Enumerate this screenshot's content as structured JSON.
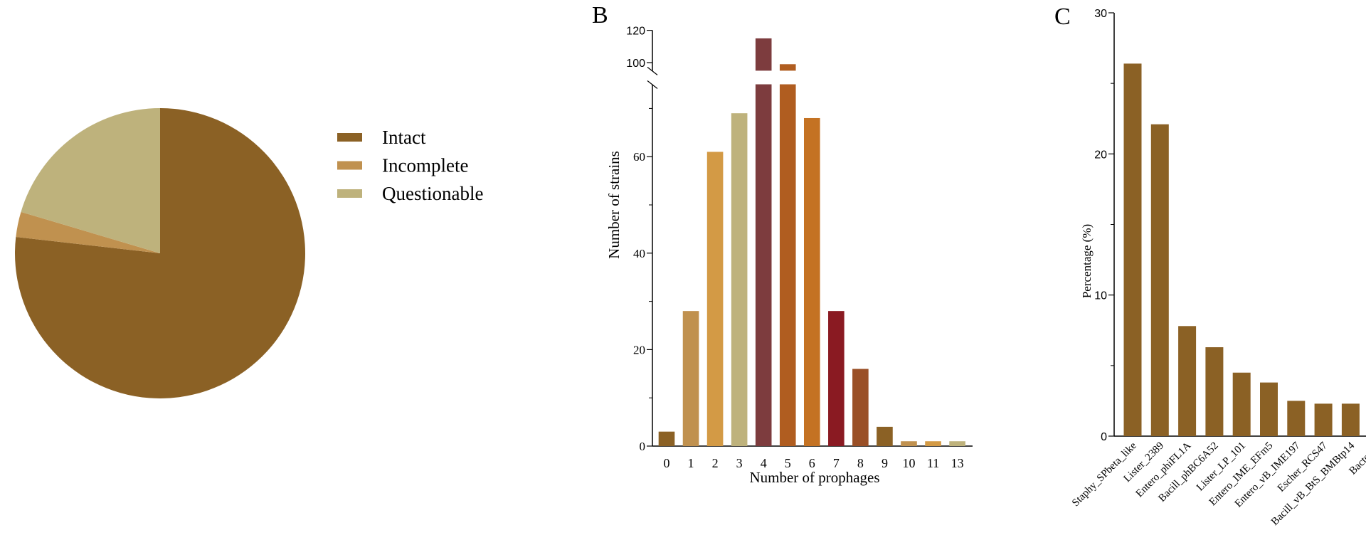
{
  "chart_data": [
    {
      "type": "pie",
      "panel_label": "",
      "categories": [
        "Intact",
        "Incomplete",
        "Questionable"
      ],
      "values": [
        76.8,
        2.8,
        20.4
      ],
      "colors": [
        "#8B6125",
        "#C0914F",
        "#BEB27C"
      ],
      "legend": {
        "entries": [
          "Intact",
          "Incomplete",
          "Questionable"
        ],
        "placement": "right"
      }
    },
    {
      "type": "bar",
      "panel_label": "B",
      "xlabel": "Number of prophages",
      "ylabel": "Number of strains",
      "categories": [
        "0",
        "1",
        "2",
        "3",
        "4",
        "5",
        "6",
        "7",
        "8",
        "9",
        "10",
        "11",
        "13"
      ],
      "values": [
        3,
        28,
        61,
        69,
        115,
        99,
        68,
        28,
        16,
        4,
        1,
        1,
        1
      ],
      "colors": [
        "#8B6125",
        "#C0914F",
        "#D39A45",
        "#BEB27C",
        "#7D3C3E",
        "#B05D20",
        "#C47223",
        "#8A1A22",
        "#9A5027",
        "#8B6125",
        "#C0914F",
        "#D39A45",
        "#BEB27C"
      ],
      "ylim": [
        0,
        120
      ],
      "axis_break": [
        75,
        95
      ],
      "yticks_lower": [
        "0",
        "20",
        "40",
        "60"
      ],
      "yticks_upper": [
        "100",
        "120"
      ],
      "grid": false
    },
    {
      "type": "bar",
      "panel_label": "C",
      "xlabel": "",
      "ylabel": "Percentage (%)",
      "categories": [
        "Staphy_SPbeta_like",
        "Lister_2389",
        "Entero_phiFL1A",
        "Bacill_phBC6A52",
        "Lister_LP_101",
        "Entero_IME_EFm5",
        "Entero_vB_IME197",
        "Escher_RCS47",
        "Bacill_vB_BtS_BMBtp14",
        "Bacter_D"
      ],
      "values": [
        26.4,
        22.1,
        7.8,
        6.3,
        4.5,
        3.8,
        2.5,
        2.3,
        2.3,
        null
      ],
      "color": "#8B6125",
      "ylim": [
        0,
        30
      ],
      "yticks": [
        "0",
        "10",
        "20",
        "30"
      ],
      "grid": false
    }
  ]
}
